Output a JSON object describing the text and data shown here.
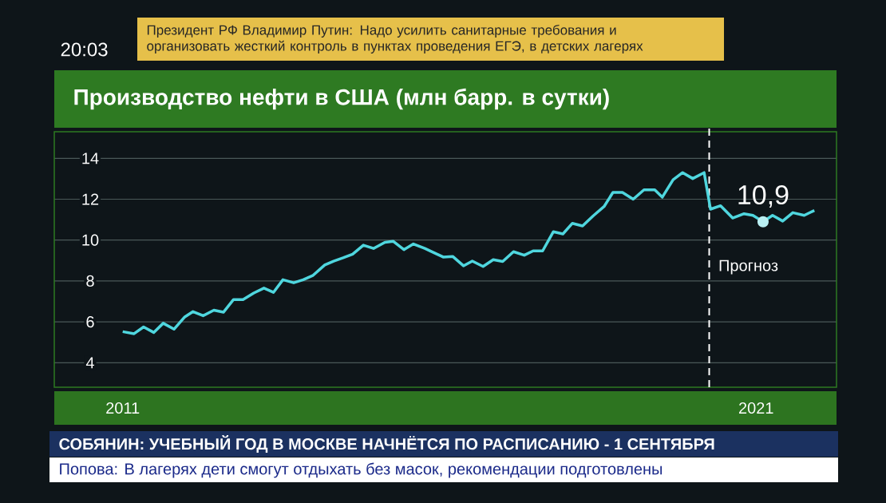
{
  "chart_data": {
    "type": "line",
    "title": "Производство нефти в США (млн барр. в сутки)",
    "x": [
      2011.0,
      2011.18,
      2011.33,
      2011.49,
      2011.64,
      2011.81,
      2011.98,
      2012.11,
      2012.27,
      2012.44,
      2012.59,
      2012.75,
      2012.9,
      2013.07,
      2013.23,
      2013.38,
      2013.53,
      2013.7,
      2013.85,
      2014.0,
      2014.19,
      2014.33,
      2014.48,
      2014.63,
      2014.8,
      2014.96,
      2015.14,
      2015.27,
      2015.44,
      2015.59,
      2015.77,
      2015.91,
      2016.06,
      2016.21,
      2016.38,
      2016.52,
      2016.69,
      2016.85,
      2017.0,
      2017.17,
      2017.34,
      2017.48,
      2017.63,
      2017.8,
      2017.95,
      2018.1,
      2018.26,
      2018.43,
      2018.6,
      2018.74,
      2018.89,
      2019.06,
      2019.23,
      2019.4,
      2019.52,
      2019.69,
      2019.84,
      2020.0,
      2020.18,
      2020.28,
      2020.44,
      2020.63,
      2020.81,
      2020.95,
      2021.11,
      2021.26,
      2021.42,
      2021.58,
      2021.76,
      2021.92
    ],
    "values": [
      5.52,
      5.42,
      5.75,
      5.48,
      5.93,
      5.64,
      6.24,
      6.5,
      6.3,
      6.57,
      6.47,
      7.09,
      7.09,
      7.41,
      7.65,
      7.44,
      8.06,
      7.91,
      8.06,
      8.26,
      8.78,
      8.97,
      9.13,
      9.31,
      9.75,
      9.59,
      9.89,
      9.94,
      9.53,
      9.81,
      9.59,
      9.39,
      9.17,
      9.2,
      8.74,
      8.97,
      8.71,
      9.04,
      8.95,
      9.43,
      9.26,
      9.47,
      9.47,
      10.41,
      10.3,
      10.82,
      10.69,
      11.19,
      11.64,
      12.33,
      12.33,
      12.0,
      12.46,
      12.46,
      12.1,
      12.95,
      13.3,
      13.01,
      13.3,
      11.51,
      11.68,
      11.08,
      11.29,
      11.21,
      10.9,
      11.21,
      10.93,
      11.34,
      11.21,
      11.45
    ],
    "color": "#4fd6de",
    "xlim": [
      2009.92,
      2022.27
    ],
    "ylim": [
      2.8,
      15.3
    ],
    "xticks": [
      2011,
      2021
    ],
    "yticks": [
      4,
      6,
      8,
      10,
      12,
      14
    ],
    "grid": "y",
    "ref_lines": [
      {
        "axis": "x",
        "value": 2020.26,
        "label": "Прогноз",
        "color": "#ffffff",
        "line_style": "dashed"
      }
    ],
    "annotations": [
      {
        "text": "10,9",
        "x": 2021.11,
        "y": 10.9
      },
      "20:03",
      "Президент РФ Владимир Путин: Надо усилить санитарные требования и организовать жесткий контроль в пунктах проведения ЕГЭ, в детских лагерях",
      "СОБЯНИН: УЧЕБНЫЙ ГОД В МОСКВЕ НАЧНЁТСЯ ПО РАСПИСАНИЮ - 1 СЕНТЯБРЯ",
      "Попова: В лагерях дети смогут отдыхать без масок, рекомендации подготовлены"
    ]
  }
}
